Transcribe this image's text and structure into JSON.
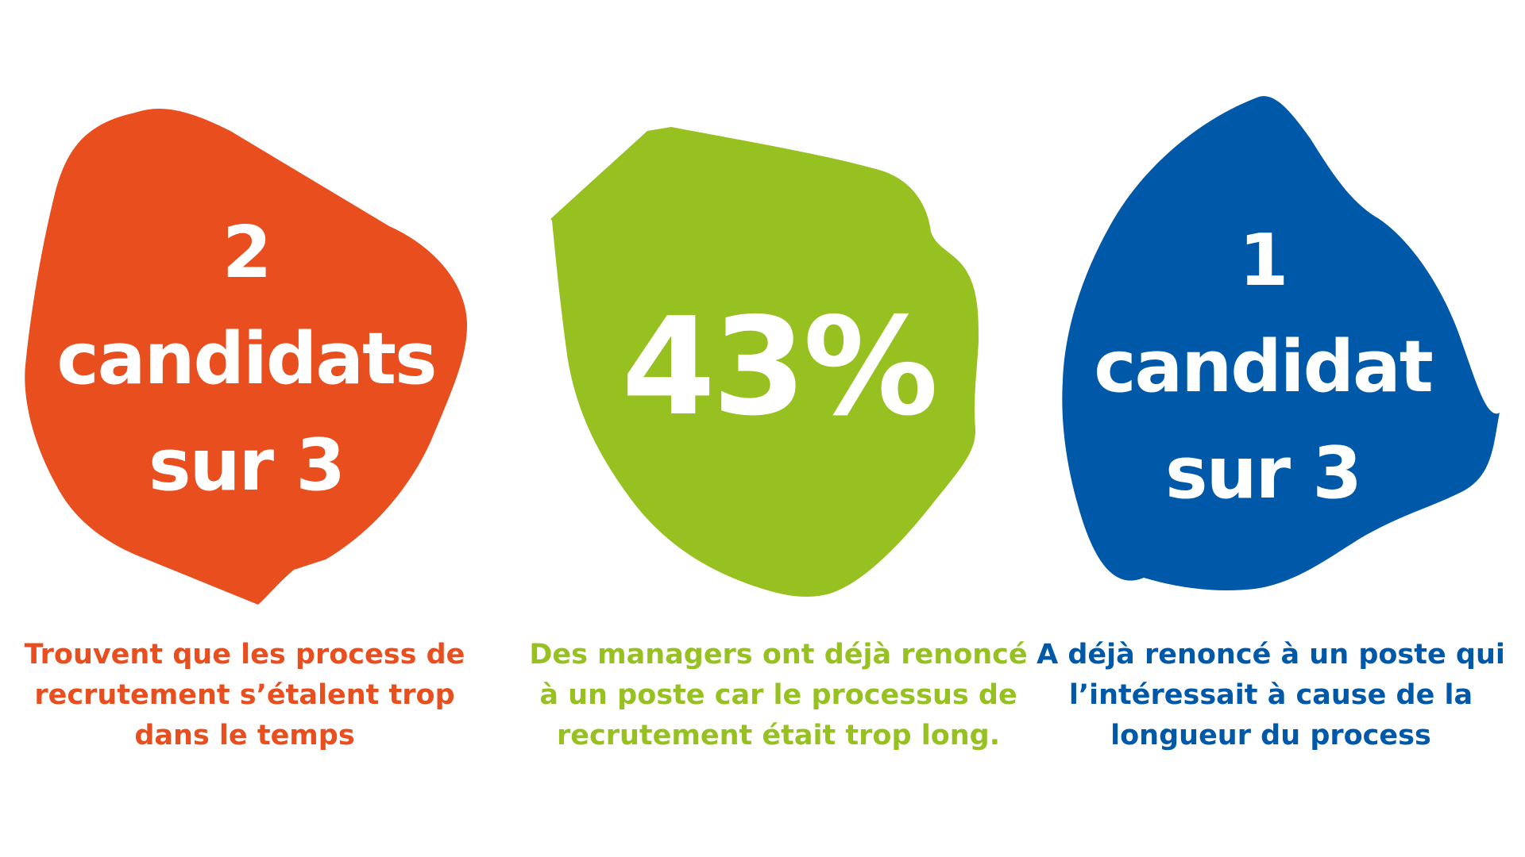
{
  "colors": {
    "orange": "#E84E1E",
    "green": "#96C121",
    "blue": "#0059A8",
    "background": "#FFFFFF"
  },
  "stats": [
    {
      "headline_lines": [
        "2",
        "candidats",
        "sur 3"
      ],
      "caption_lines": [
        "Trouvent que les process de",
        "recrutement s’étalent trop",
        "dans le temps"
      ]
    },
    {
      "headline_lines": [
        "43%"
      ],
      "caption_lines": [
        "Des managers ont déjà renoncé",
        "à un poste car le processus de",
        "recrutement était trop long."
      ]
    },
    {
      "headline_lines": [
        "1",
        "candidat",
        "sur 3"
      ],
      "caption_lines": [
        "A déjà renoncé à un poste qui",
        "l’intéressait à cause de la",
        "longueur du process"
      ]
    }
  ]
}
